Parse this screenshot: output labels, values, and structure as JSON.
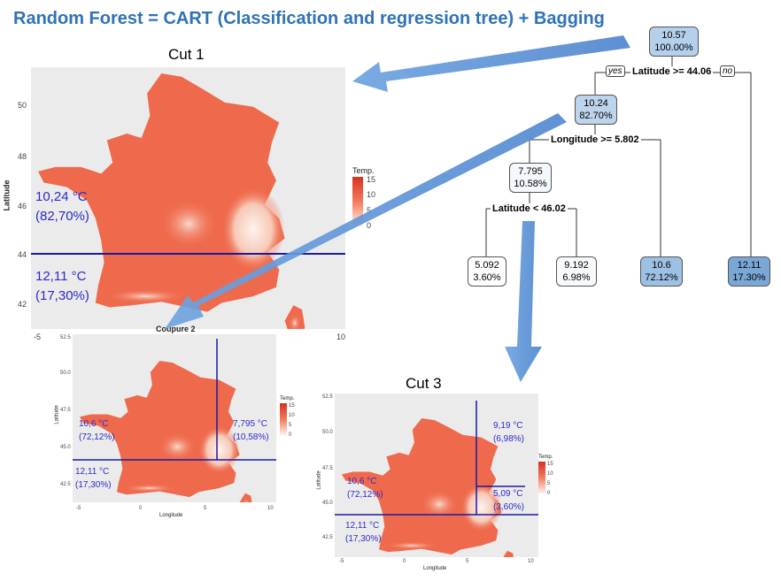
{
  "title": "Random Forest = CART (Classification and regression tree) + Bagging",
  "cuts": {
    "cut1_label": "Cut 1",
    "cut3_label": "Cut 3",
    "coupure_label": "Coupure 2"
  },
  "axes": {
    "xlabel": "Longitude",
    "ylabel": "Latitude",
    "legend_title": "Temp.",
    "legend_ticks": [
      "15",
      "10",
      "5",
      "0"
    ],
    "map1_yticks": [
      "50",
      "48",
      "46",
      "44",
      "42"
    ],
    "map1_xticks": [
      "-5",
      "10"
    ],
    "small_yticks": [
      "52.5",
      "50.0",
      "47.5",
      "45.0",
      "42.5"
    ],
    "small_xticks": [
      "-5",
      "0",
      "5",
      "10"
    ]
  },
  "map1": {
    "upper_value": "10,24 °C",
    "upper_pct": "(82,70%)",
    "lower_value": "12,11 °C",
    "lower_pct": "(17,30%)"
  },
  "map2": {
    "left_value": "10,6 °C",
    "left_pct": "(72,12%)",
    "right_value": "7,795 °C",
    "right_pct": "(10,58%)",
    "lower_value": "12,11 °C",
    "lower_pct": "(17,30%)"
  },
  "map3": {
    "upper_right_value": "9,19 °C",
    "upper_right_pct": "(6,98%)",
    "mid_right_value": "5,09 °C",
    "mid_right_pct": "(3,60%)",
    "left_value": "10,6 °C",
    "left_pct": "(72,12%)",
    "lower_value": "12,11 °C",
    "lower_pct": "(17,30%)"
  },
  "tree": {
    "root": {
      "value": "10.57",
      "pct": "100.00%"
    },
    "split1": "Latitude >= 44.06",
    "yes": "yes",
    "no": "no",
    "n1": {
      "value": "10.24",
      "pct": "82.70%"
    },
    "split2": "Longitude >= 5.802",
    "n2": {
      "value": "7.795",
      "pct": "10.58%"
    },
    "split3": "Latitude < 46.02",
    "leaves": [
      {
        "value": "5.092",
        "pct": "3.60%"
      },
      {
        "value": "9.192",
        "pct": "6.98%"
      },
      {
        "value": "10.6",
        "pct": "72.12%"
      },
      {
        "value": "12.11",
        "pct": "17.30%"
      }
    ]
  },
  "colors": {
    "title": "#2f72b8",
    "arrow": "#5b93d6",
    "cut_line": "#1a1aa0",
    "region_text": "#2b2bc8",
    "map_fill": "#f06b4d",
    "map_light": "#f7c8b6"
  }
}
